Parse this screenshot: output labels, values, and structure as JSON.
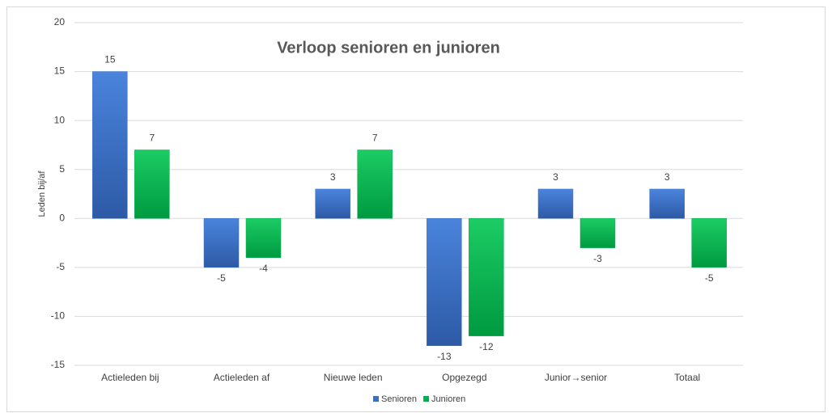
{
  "chart_data": {
    "type": "bar",
    "title": "Verloop senioren en junioren",
    "y_label": "Leden bij/af",
    "categories": [
      "Actieleden bij",
      "Actieleden af",
      "Nieuwe leden",
      "Opgezegd",
      "Junior→senior",
      "Totaal"
    ],
    "series": [
      {
        "name": "Senioren",
        "color": "#3b6fc6",
        "values": [
          15,
          -5,
          3,
          -13,
          3,
          3
        ]
      },
      {
        "name": "Junioren",
        "color": "#00b050",
        "values": [
          7,
          -4,
          7,
          -12,
          -3,
          -5
        ]
      }
    ],
    "ylim": [
      -15,
      20
    ],
    "yticks": [
      -15,
      -10,
      -5,
      0,
      5,
      10,
      15,
      20
    ],
    "grid": true,
    "legend": "bottom"
  }
}
